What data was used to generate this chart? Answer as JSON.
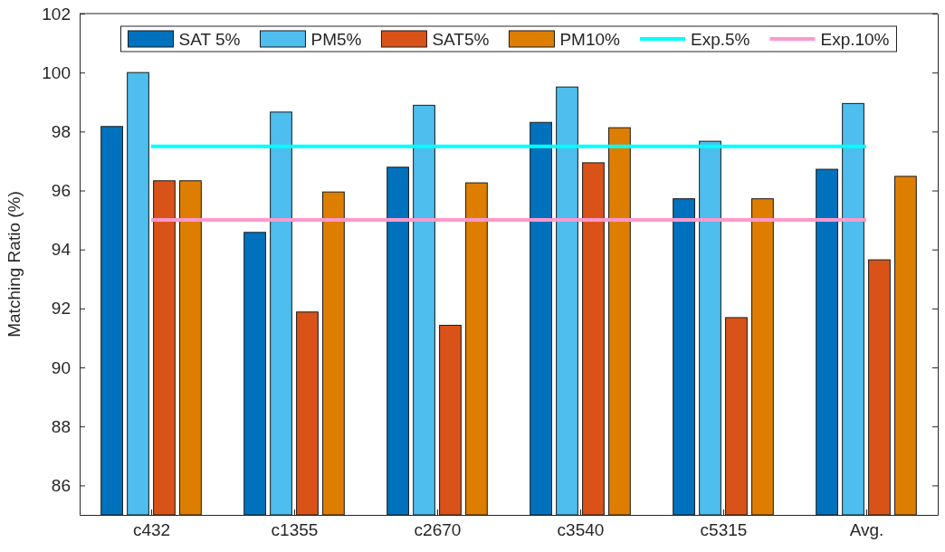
{
  "chart_data": {
    "type": "bar",
    "ylabel": "Matching Ratio (%)",
    "categories": [
      "c432",
      "c1355",
      "c2670",
      "c3540",
      "c5315",
      "Avg."
    ],
    "series": [
      {
        "name": "SAT 5%",
        "color": "#0072bd",
        "values": [
          98.17,
          94.58,
          96.79,
          98.31,
          95.72,
          96.72
        ]
      },
      {
        "name": "PM5%",
        "color": "#4dbeee",
        "values": [
          100.0,
          98.66,
          98.89,
          99.51,
          97.67,
          98.95
        ]
      },
      {
        "name": "SAT5%",
        "color": "#d95319",
        "values": [
          96.33,
          91.88,
          91.43,
          96.94,
          91.69,
          93.65
        ]
      },
      {
        "name": "PM10%",
        "color": "#de7e00",
        "values": [
          96.33,
          95.95,
          96.26,
          98.13,
          95.72,
          96.48
        ]
      },
      {
        "name": "Exp.5%",
        "type": "line",
        "color": "#00ffff",
        "values": [
          97.5,
          97.5,
          97.5,
          97.5,
          97.5,
          97.5
        ]
      },
      {
        "name": "Exp.10%",
        "type": "line",
        "color": "#ff99cc",
        "values": [
          95.0,
          95.0,
          95.0,
          95.0,
          95.0,
          95.0
        ]
      }
    ],
    "ylim": [
      85,
      102
    ],
    "yticks": [
      86,
      88,
      90,
      92,
      94,
      96,
      98,
      100,
      102
    ],
    "grid": false,
    "legend": "top",
    "marker": "none",
    "line_style": "solid"
  }
}
